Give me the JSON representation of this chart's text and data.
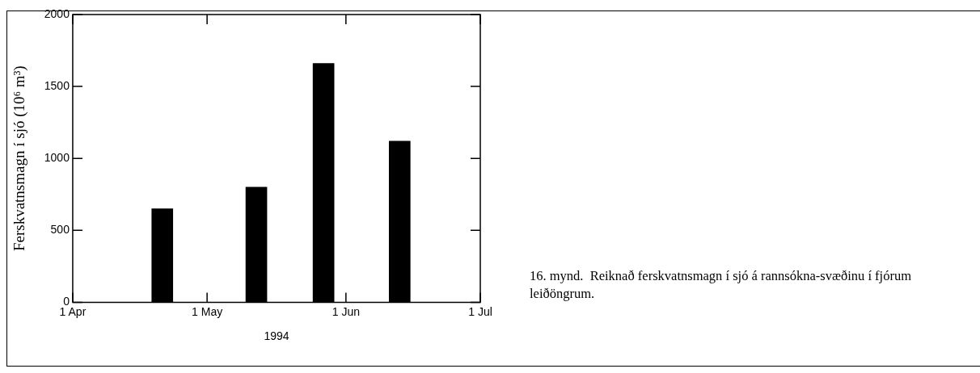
{
  "chart_data": {
    "type": "bar",
    "xlabel": "1994",
    "ylabel": "Ferskvatnsmagn í sjó (10⁶ m³)",
    "x": [
      "1994-04-21",
      "1994-05-12",
      "1994-05-27",
      "1994-06-13"
    ],
    "values": [
      650,
      800,
      1660,
      1120
    ],
    "color": "#000000",
    "xlim": [
      "1994-04-01",
      "1994-07-01"
    ],
    "xticks": [
      {
        "value": "1994-04-01",
        "label": "1 Apr"
      },
      {
        "value": "1994-05-01",
        "label": "1 May"
      },
      {
        "value": "1994-06-01",
        "label": "1 Jun"
      },
      {
        "value": "1994-07-01",
        "label": "1 Jul"
      }
    ],
    "ylim": [
      0,
      2000
    ],
    "yticks": [
      0,
      500,
      1000,
      1500,
      2000
    ],
    "grid": false,
    "legend": false,
    "annotations": [
      "16. mynd.  Reiknað ferskvatnsmagn í sjó á rannsókna-svæðinu í fjórum leiðöngrum."
    ]
  }
}
